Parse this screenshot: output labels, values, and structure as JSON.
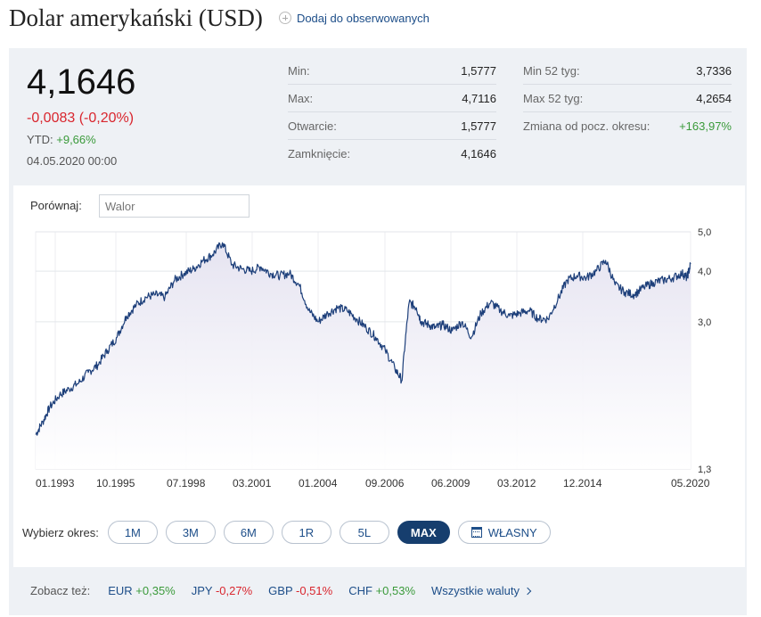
{
  "header": {
    "title": "Dolar amerykański (USD)",
    "watch_label": "Dodaj do obserwowanych",
    "watch_icon": "plus-circle-icon"
  },
  "quote": {
    "price": "4,1646",
    "change": "-0,0083 (-0,20%)",
    "ytd_label": "YTD:",
    "ytd_value": "+9,66%",
    "date": "04.05.2020 00:00"
  },
  "stats_left": [
    {
      "label": "Min:",
      "value": "1,5777"
    },
    {
      "label": "Max:",
      "value": "4,7116"
    },
    {
      "label": "Otwarcie:",
      "value": "1,5777"
    },
    {
      "label": "Zamknięcie:",
      "value": "4,1646"
    }
  ],
  "stats_right": [
    {
      "label": "Min 52 tyg:",
      "value": "3,7336"
    },
    {
      "label": "Max 52 tyg:",
      "value": "4,2654"
    },
    {
      "label": "Zmiana od pocz. okresu:",
      "value": "+163,97%"
    }
  ],
  "compare": {
    "label": "Porównaj:",
    "placeholder": "Walor"
  },
  "chart_data": {
    "type": "area",
    "x_tick_labels": [
      "01.1993",
      "10.1995",
      "07.1998",
      "03.2001",
      "01.2004",
      "09.2006",
      "06.2009",
      "03.2012",
      "12.2014",
      "05.2020"
    ],
    "y_tick_labels": [
      "5,0",
      "4,0",
      "3,0",
      "1,3"
    ],
    "y_scale": "log",
    "ylim": [
      1.3,
      5.0
    ],
    "grid": true,
    "line_color": "#1d3f7a",
    "fill_color": "#e6e4f1",
    "series": [
      {
        "x": [
          1993.0,
          1993.3,
          1993.6,
          1994.0,
          1994.4,
          1994.8,
          1995.2,
          1995.6,
          1996.0,
          1996.4,
          1996.8,
          1997.2,
          1997.6,
          1998.0,
          1998.4,
          1998.8,
          1999.2,
          1999.6,
          2000.0,
          2000.4,
          2000.8,
          2001.2,
          2001.6,
          2002.0,
          2002.4,
          2002.8,
          2003.2,
          2003.6,
          2004.0,
          2004.4,
          2004.8,
          2005.2,
          2005.6,
          2006.0,
          2006.4,
          2006.8,
          2007.2,
          2007.6,
          2008.0,
          2008.3,
          2008.6,
          2008.9,
          2009.1,
          2009.4,
          2009.7,
          2010.0,
          2010.4,
          2010.8,
          2011.2,
          2011.6,
          2012.0,
          2012.4,
          2012.8,
          2013.2,
          2013.6,
          2014.0,
          2014.4,
          2014.8,
          2015.2,
          2015.6,
          2016.0,
          2016.4,
          2016.8,
          2017.2,
          2017.6,
          2018.0,
          2018.4,
          2018.8,
          2019.2,
          2019.6,
          2020.0,
          2020.2,
          2020.35
        ],
        "y": [
          1.58,
          1.7,
          1.85,
          1.98,
          2.05,
          2.12,
          2.25,
          2.35,
          2.55,
          2.75,
          3.1,
          3.3,
          3.45,
          3.5,
          3.45,
          3.8,
          3.95,
          4.05,
          4.25,
          4.4,
          4.7,
          4.15,
          4.05,
          4.0,
          4.1,
          3.95,
          3.9,
          3.95,
          3.7,
          3.2,
          3.0,
          3.15,
          3.25,
          3.2,
          3.05,
          2.9,
          2.75,
          2.55,
          2.3,
          2.15,
          3.35,
          3.25,
          3.0,
          2.95,
          2.9,
          2.95,
          2.85,
          3.0,
          2.75,
          3.15,
          3.35,
          3.2,
          3.1,
          3.15,
          3.2,
          3.05,
          3.05,
          3.4,
          3.8,
          3.9,
          3.85,
          4.0,
          4.25,
          3.7,
          3.55,
          3.5,
          3.65,
          3.75,
          3.8,
          3.85,
          3.95,
          3.85,
          4.16
        ]
      }
    ]
  },
  "period": {
    "label": "Wybierz okres:",
    "buttons": [
      "1M",
      "3M",
      "6M",
      "1R",
      "5L",
      "MAX"
    ],
    "active": "MAX",
    "custom_label": "WŁASNY",
    "custom_icon": "calendar-icon"
  },
  "see_also": {
    "label": "Zobacz też:",
    "items": [
      {
        "code": "EUR",
        "change": "+0,35%",
        "dir": "pos"
      },
      {
        "code": "JPY",
        "change": "-0,27%",
        "dir": "neg"
      },
      {
        "code": "GBP",
        "change": "-0,51%",
        "dir": "neg"
      },
      {
        "code": "CHF",
        "change": "+0,53%",
        "dir": "pos"
      }
    ],
    "all_label": "Wszystkie waluty",
    "all_icon": "chevron-right-icon"
  }
}
